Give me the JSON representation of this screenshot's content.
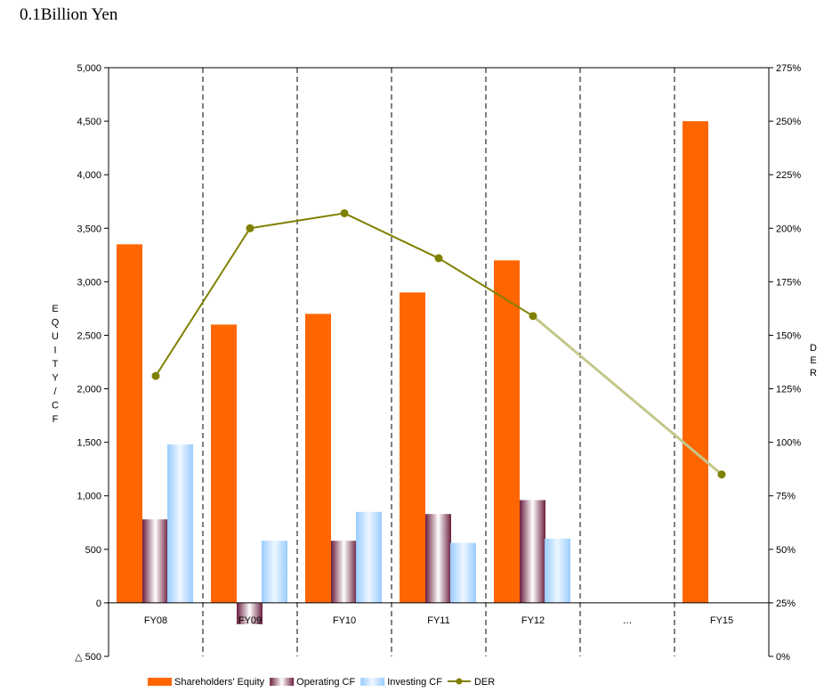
{
  "unit_label": "0.1Billion Yen",
  "chart_data": {
    "type": "bar",
    "categories": [
      "FY08",
      "FY09",
      "FY10",
      "FY11",
      "FY12",
      "…",
      "FY15"
    ],
    "series": [
      {
        "name": "Shareholders' Equity",
        "values": [
          3350,
          2600,
          2700,
          2900,
          3200,
          null,
          4500
        ],
        "color": "#ff6600"
      },
      {
        "name": "Operating CF",
        "values": [
          780,
          -200,
          580,
          830,
          960,
          null,
          null
        ],
        "color": "#993366"
      },
      {
        "name": "Investing CF",
        "values": [
          1480,
          580,
          850,
          560,
          600,
          null,
          null
        ],
        "color": "#99ccff"
      }
    ],
    "line_series": {
      "name": "DER",
      "values": [
        1.31,
        2.0,
        2.07,
        1.86,
        1.59,
        null,
        0.85
      ],
      "projected_from_index": 4,
      "color": "#808000",
      "projected_color": "#c4c78a"
    },
    "y_left": {
      "label": "EQUITY/CF",
      "ylim": [
        -500,
        5000
      ],
      "ticks": [
        -500,
        0,
        500,
        1000,
        1500,
        2000,
        2500,
        3000,
        3500,
        4000,
        4500,
        5000
      ],
      "tick_labels": [
        "△ 500",
        "0",
        "500",
        "1,000",
        "1,500",
        "2,000",
        "2,500",
        "3,000",
        "3,500",
        "4,000",
        "4,500",
        "5,000"
      ]
    },
    "y_right": {
      "label": "DER",
      "ylim": [
        0,
        2.75
      ],
      "ticks": [
        0,
        0.25,
        0.5,
        0.75,
        1.0,
        1.25,
        1.5,
        1.75,
        2.0,
        2.25,
        2.5,
        2.75
      ],
      "tick_labels": [
        "0%",
        "25%",
        "50%",
        "75%",
        "100%",
        "125%",
        "150%",
        "175%",
        "200%",
        "225%",
        "250%",
        "275%"
      ]
    },
    "grid": "vertical dashed category separators",
    "legend_position": "bottom"
  }
}
